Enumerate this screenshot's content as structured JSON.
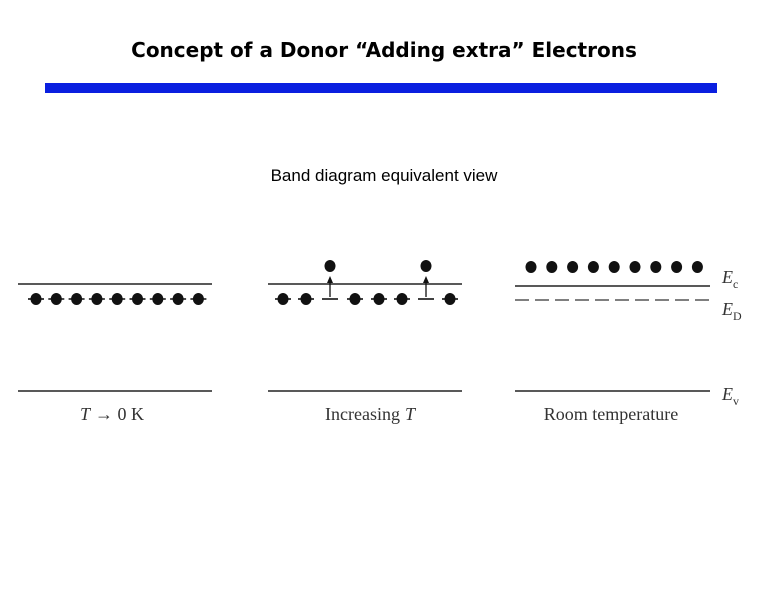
{
  "header": {
    "title": "Concept of a Donor “Adding extra” Electrons",
    "subtitle": "Band diagram equivalent view"
  },
  "panels": [
    {
      "caption_parts": [
        "T",
        "→ 0 K"
      ]
    },
    {
      "caption_parts": [
        "Increasing",
        "T"
      ]
    },
    {
      "caption_parts": [
        "Room temperature"
      ]
    }
  ],
  "levels": [
    {
      "symbol": "E",
      "subscript": "c"
    },
    {
      "symbol": "E",
      "subscript": "D"
    },
    {
      "symbol": "E",
      "subscript": "v"
    }
  ]
}
